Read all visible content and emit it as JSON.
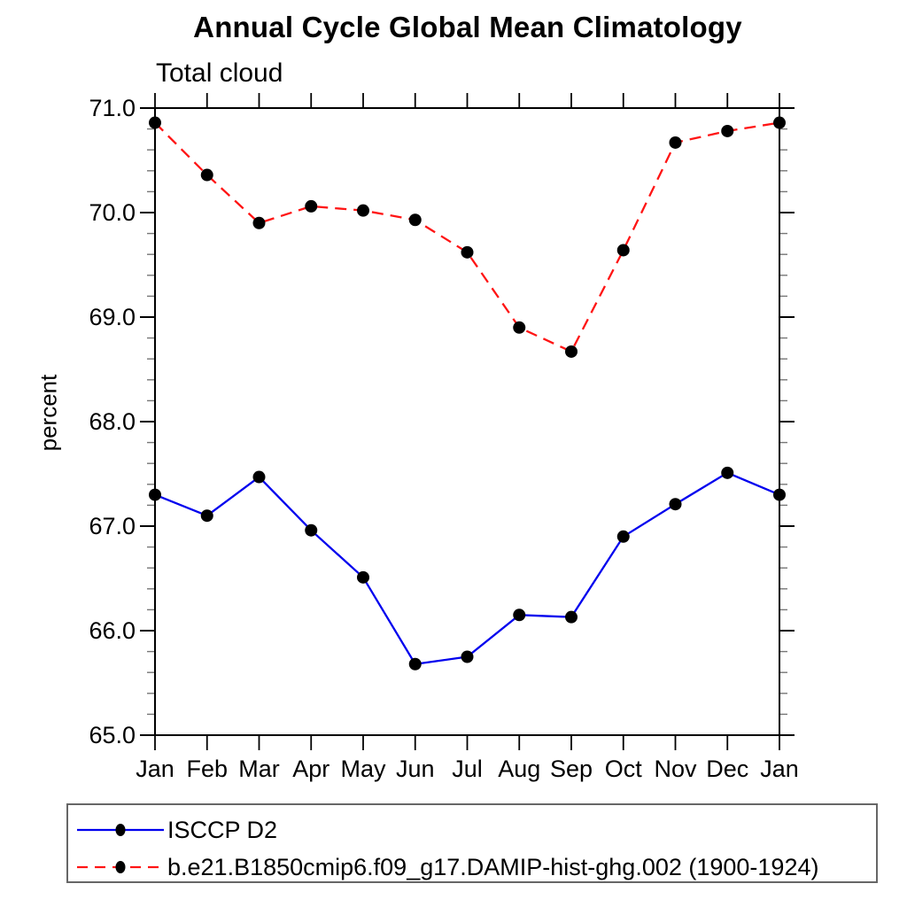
{
  "chart_data": {
    "type": "line",
    "title": "Annual Cycle Global Mean Climatology",
    "subtitle": "Total cloud",
    "xlabel": "",
    "ylabel": "percent",
    "categories": [
      "Jan",
      "Feb",
      "Mar",
      "Apr",
      "May",
      "Jun",
      "Jul",
      "Aug",
      "Sep",
      "Oct",
      "Nov",
      "Dec",
      "Jan"
    ],
    "ylim": [
      65.0,
      71.0
    ],
    "yticks": [
      65.0,
      66.0,
      67.0,
      68.0,
      69.0,
      70.0,
      71.0
    ],
    "ytick_labels": [
      "65.0",
      "66.0",
      "67.0",
      "68.0",
      "69.0",
      "70.0",
      "71.0"
    ],
    "yminor_interval": 0.2,
    "grid": false,
    "legend": {
      "position": "bottom-left",
      "border": true
    },
    "marker": {
      "shape": "filled-circle",
      "color": "#000000"
    },
    "series": [
      {
        "name": "ISCCP D2",
        "color": "#0000ee",
        "line_style": "solid",
        "values": [
          67.3,
          67.1,
          67.47,
          66.96,
          66.51,
          65.68,
          65.75,
          66.15,
          66.13,
          66.9,
          67.21,
          67.51,
          67.3
        ]
      },
      {
        "name": "b.e21.B1850cmip6.f09_g17.DAMIP-hist-ghg.002 (1900-1924)",
        "color": "#ff1414",
        "line_style": "dashed",
        "values": [
          70.86,
          70.36,
          69.9,
          70.06,
          70.02,
          69.93,
          69.62,
          68.9,
          68.67,
          69.64,
          70.67,
          70.78,
          70.86
        ]
      }
    ]
  }
}
